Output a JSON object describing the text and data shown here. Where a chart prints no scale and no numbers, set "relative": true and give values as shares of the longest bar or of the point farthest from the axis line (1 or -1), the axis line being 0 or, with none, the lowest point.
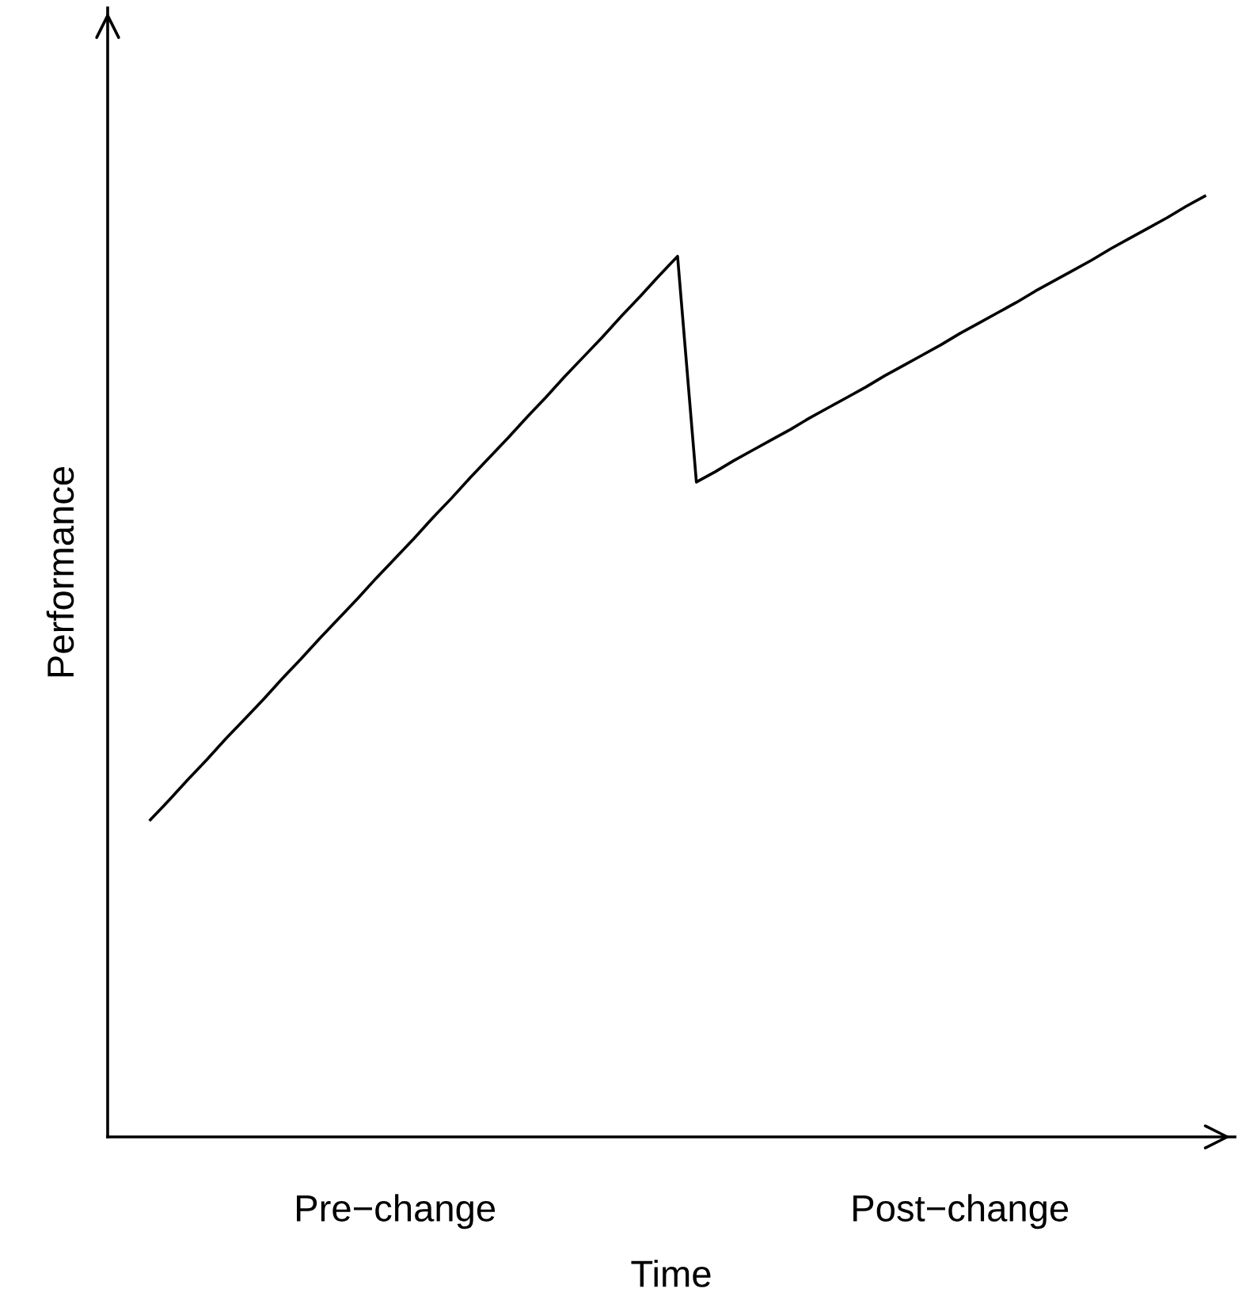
{
  "chart_data": {
    "type": "line",
    "relative": true,
    "xlabel": "Time",
    "ylabel": "Performance",
    "categories": [
      null,
      null,
      null,
      null,
      null,
      null,
      null,
      null,
      null,
      null,
      null,
      null,
      null,
      "Pre−change",
      null,
      null,
      null,
      null,
      null,
      null,
      null,
      null,
      null,
      null,
      null,
      null,
      null,
      null,
      null,
      null,
      null,
      null,
      null,
      null,
      null,
      null,
      null,
      null,
      null,
      null,
      null,
      null,
      null,
      "Post−change",
      null,
      null,
      null,
      null,
      null,
      null,
      null,
      null,
      null,
      null,
      null,
      null,
      null
    ],
    "tick_labels": "x",
    "series": [
      {
        "color": "#000000",
        "values": [
          0.337,
          0.358,
          0.38,
          0.401,
          0.423,
          0.444,
          0.465,
          0.487,
          0.508,
          0.53,
          0.551,
          0.572,
          0.594,
          0.615,
          0.636,
          0.658,
          0.679,
          0.701,
          0.722,
          0.743,
          0.765,
          0.786,
          0.808,
          0.829,
          0.85,
          0.872,
          0.893,
          0.915,
          0.936,
          0.696,
          0.707,
          0.719,
          0.73,
          0.741,
          0.752,
          0.764,
          0.775,
          0.786,
          0.797,
          0.809,
          0.82,
          0.831,
          0.842,
          0.854,
          0.865,
          0.876,
          0.887,
          0.899,
          0.91,
          0.921,
          0.932,
          0.944,
          0.955,
          0.966,
          0.977,
          0.989,
          1.0
        ]
      }
    ],
    "grid": false,
    "legend": false
  }
}
